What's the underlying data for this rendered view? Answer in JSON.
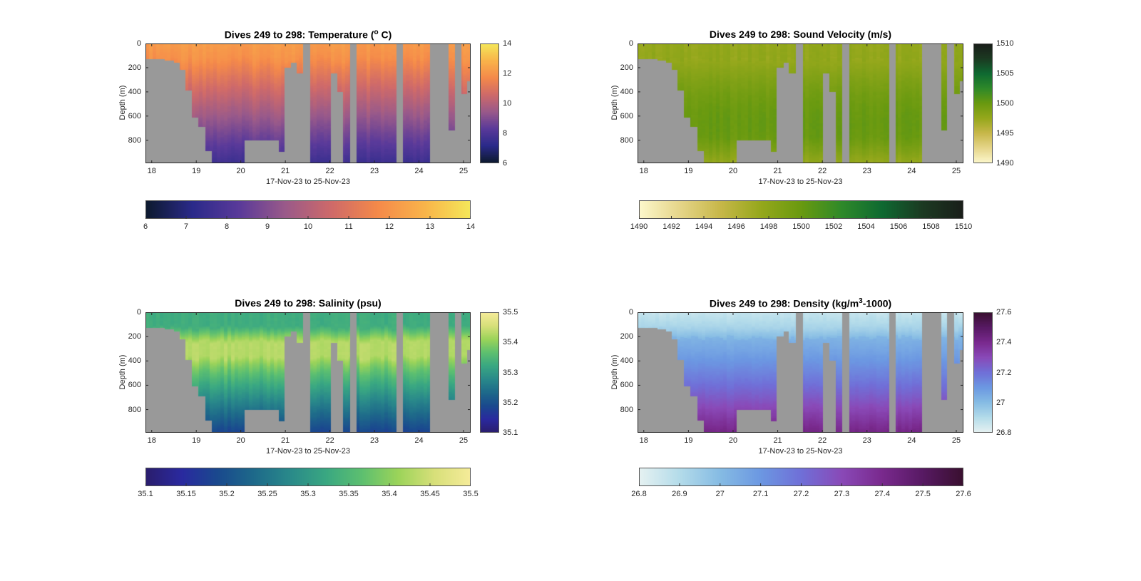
{
  "chart_data": [
    {
      "type": "heatmap",
      "id": "temperature",
      "title_main": "Dives 249 to 298: Temperature (",
      "title_sup": "o",
      "title_tail": " C)",
      "xlabel": "17-Nov-23 to 25-Nov-23",
      "ylabel": "Depth (m)",
      "xlim": [
        17.86,
        25.16
      ],
      "ylim": [
        0,
        990
      ],
      "xticks": [
        18,
        19,
        20,
        21,
        22,
        23,
        24,
        25
      ],
      "yticks": [
        0,
        200,
        400,
        600,
        800
      ],
      "clim": [
        6,
        14
      ],
      "colorbar_ticks": [
        6,
        8,
        10,
        12,
        14
      ],
      "horizontal_colorbar_ticks": [
        6,
        7,
        8,
        9,
        10,
        11,
        12,
        13,
        14
      ],
      "colormap": [
        "#0d1a2e",
        "#2b2a8a",
        "#5a3a9a",
        "#9a5a8a",
        "#cf6a6a",
        "#f58a4a",
        "#f9b44a",
        "#f5e85a"
      ],
      "profile": {
        "surface": 12.2,
        "mixed_layer": 11.9,
        "mixed_depth": 130,
        "deep": 7.6
      }
    },
    {
      "type": "heatmap",
      "id": "sound-velocity",
      "title_main": "Dives 249 to 298: Sound Velocity (m/s)",
      "title_sup": "",
      "title_tail": "",
      "xlabel": "17-Nov-23 to 25-Nov-23",
      "ylabel": "Depth (m)",
      "xlim": [
        17.86,
        25.16
      ],
      "ylim": [
        0,
        990
      ],
      "xticks": [
        18,
        19,
        20,
        21,
        22,
        23,
        24,
        25
      ],
      "yticks": [
        0,
        200,
        400,
        600,
        800
      ],
      "clim": [
        1490,
        1510
      ],
      "colorbar_ticks": [
        1490,
        1495,
        1500,
        1505,
        1510
      ],
      "horizontal_colorbar_ticks": [
        1490,
        1492,
        1494,
        1496,
        1498,
        1500,
        1502,
        1504,
        1506,
        1508,
        1510
      ],
      "colormap": [
        "#fdf8cc",
        "#e6d68a",
        "#c8b84a",
        "#96a81c",
        "#6a9a10",
        "#2f8a2a",
        "#0f6a32",
        "#1c3a22",
        "#1a1f1a"
      ],
      "profile": {
        "surface": 1497.6,
        "mixed_layer": 1497.8,
        "mixed_depth": 130,
        "deep": 1499.4
      }
    },
    {
      "type": "heatmap",
      "id": "salinity",
      "title_main": "Dives 249 to 298: Salinity (psu)",
      "title_sup": "",
      "title_tail": "",
      "xlabel": "17-Nov-23 to 25-Nov-23",
      "ylabel": "Depth (m)",
      "xlim": [
        17.86,
        25.16
      ],
      "ylim": [
        0,
        990
      ],
      "xticks": [
        18,
        19,
        20,
        21,
        22,
        23,
        24,
        25
      ],
      "yticks": [
        0,
        200,
        400,
        600,
        800
      ],
      "clim": [
        35.1,
        35.5
      ],
      "colorbar_ticks": [
        35.1,
        35.2,
        35.3,
        35.4,
        35.5
      ],
      "horizontal_colorbar_ticks": [
        35.1,
        35.15,
        35.2,
        35.25,
        35.3,
        35.35,
        35.4,
        35.45,
        35.5
      ],
      "colormap": [
        "#2a1e6e",
        "#2a2aa0",
        "#1a4a8e",
        "#1e6a8a",
        "#2a8a8a",
        "#3aa882",
        "#5ec070",
        "#9cd45a",
        "#d8e07a",
        "#f6ec9a"
      ],
      "profile": {
        "surface": 35.33,
        "mixed_layer": 35.33,
        "mixed_depth": 120,
        "deep": 35.18
      }
    },
    {
      "type": "heatmap",
      "id": "density",
      "title_main": "Dives 249 to 298: Density (kg/m",
      "title_sup": "3",
      "title_tail": "-1000)",
      "xlabel": "17-Nov-23 to 25-Nov-23",
      "ylabel": "Depth (m)",
      "xlim": [
        17.86,
        25.16
      ],
      "ylim": [
        0,
        990
      ],
      "xticks": [
        18,
        19,
        20,
        21,
        22,
        23,
        24,
        25
      ],
      "yticks": [
        0,
        200,
        400,
        600,
        800
      ],
      "clim": [
        26.8,
        27.6
      ],
      "colorbar_ticks": [
        26.8,
        27,
        27.2,
        27.4,
        27.6
      ],
      "colorbar_tick_labels": [
        "26.8",
        "27",
        "27.2",
        "27.4",
        "27.6"
      ],
      "horizontal_colorbar_ticks": [
        26.8,
        26.9,
        27.0,
        27.1,
        27.2,
        27.3,
        27.4,
        27.5,
        27.6
      ],
      "horizontal_colorbar_tick_labels": [
        "26.8",
        "26.9",
        "27",
        "27.1",
        "27.2",
        "27.3",
        "27.4",
        "27.5",
        "27.6"
      ],
      "colormap": [
        "#e6f2f2",
        "#b4dcea",
        "#86bce4",
        "#6c98e2",
        "#7070d8",
        "#8a4ab8",
        "#7a2a8e",
        "#581a64",
        "#3a1030"
      ],
      "profile": {
        "surface": 26.86,
        "mixed_layer": 26.92,
        "mixed_depth": 120,
        "deep": 27.42
      }
    }
  ],
  "profile_coverage": {
    "description": "max dive depth (m) of data columns, by day range",
    "columns": [
      {
        "from": 17.86,
        "to": 18.3,
        "max_depth": 130
      },
      {
        "from": 18.3,
        "to": 18.5,
        "max_depth": 140
      },
      {
        "from": 18.5,
        "to": 18.63,
        "max_depth": 160
      },
      {
        "from": 18.63,
        "to": 18.76,
        "max_depth": 220
      },
      {
        "from": 18.76,
        "to": 18.9,
        "max_depth": 390
      },
      {
        "from": 18.9,
        "to": 19.05,
        "max_depth": 610
      },
      {
        "from": 19.05,
        "to": 19.2,
        "max_depth": 690
      },
      {
        "from": 19.2,
        "to": 19.35,
        "max_depth": 890
      },
      {
        "from": 19.35,
        "to": 20.08,
        "max_depth": 990
      },
      {
        "from": 20.08,
        "to": 20.85,
        "max_depth": 800
      },
      {
        "from": 20.85,
        "to": 20.98,
        "max_depth": 895
      },
      {
        "from": 20.98,
        "to": 21.13,
        "max_depth": 200
      },
      {
        "from": 21.13,
        "to": 21.25,
        "max_depth": 160
      },
      {
        "from": 21.25,
        "to": 21.4,
        "max_depth": 250
      },
      {
        "from": 21.4,
        "to": 21.56,
        "max_depth": 0
      },
      {
        "from": 21.56,
        "to": 22.02,
        "max_depth": 990
      },
      {
        "from": 22.02,
        "to": 22.16,
        "max_depth": 250
      },
      {
        "from": 22.16,
        "to": 22.3,
        "max_depth": 400
      },
      {
        "from": 22.3,
        "to": 22.45,
        "max_depth": 990
      },
      {
        "from": 22.45,
        "to": 22.6,
        "max_depth": 0
      },
      {
        "from": 22.6,
        "to": 23.5,
        "max_depth": 990
      },
      {
        "from": 23.5,
        "to": 23.64,
        "max_depth": 0
      },
      {
        "from": 23.64,
        "to": 24.24,
        "max_depth": 990
      },
      {
        "from": 24.24,
        "to": 24.66,
        "max_depth": 0
      },
      {
        "from": 24.66,
        "to": 24.8,
        "max_depth": 720
      },
      {
        "from": 24.8,
        "to": 24.95,
        "max_depth": 0
      },
      {
        "from": 24.95,
        "to": 25.08,
        "max_depth": 420
      },
      {
        "from": 25.08,
        "to": 25.16,
        "max_depth": 310
      }
    ]
  }
}
